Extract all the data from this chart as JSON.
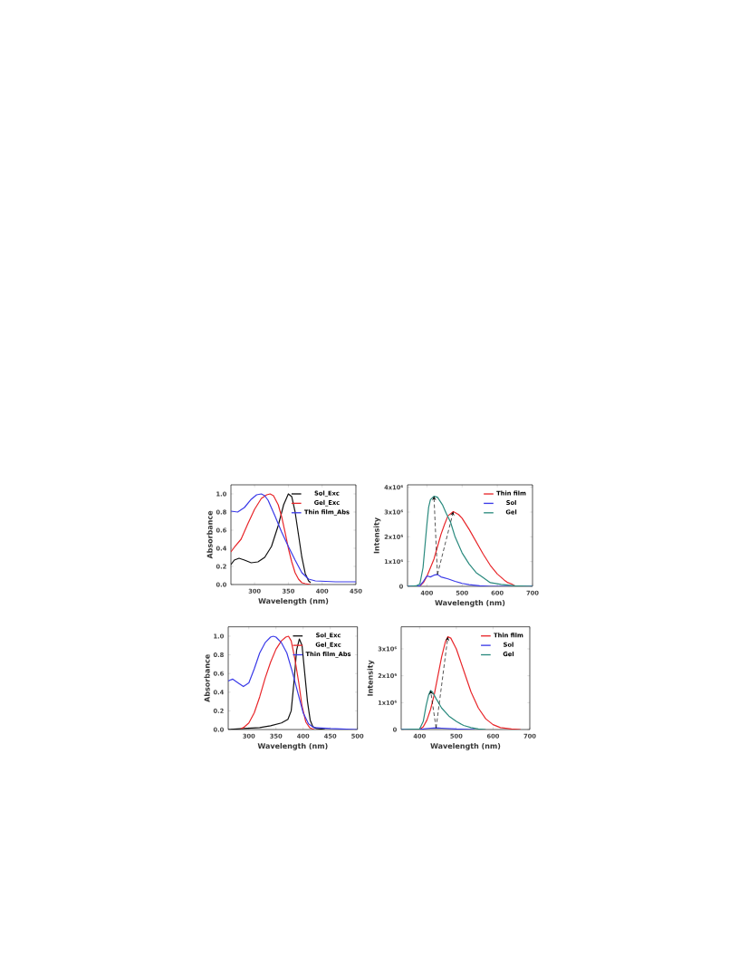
{
  "chart_data": [
    {
      "type": "line",
      "xlabel": "Wavelength (nm)",
      "ylabel": "Absorbance",
      "xlim": [
        265,
        450
      ],
      "xticks": [
        300,
        350,
        400,
        450
      ],
      "ylim": [
        0,
        1.1
      ],
      "yticks": [
        {
          "value": 0,
          "label": "0.0"
        },
        {
          "value": 0.2,
          "label": "0.2"
        },
        {
          "value": 0.4,
          "label": "0.4"
        },
        {
          "value": 0.6,
          "label": "0.6"
        },
        {
          "value": 0.8,
          "label": "0.8"
        },
        {
          "value": 1.0,
          "label": "1.0"
        }
      ],
      "legend": "top right",
      "series": [
        {
          "name": "Sol_Exc",
          "color": "#111111",
          "x": [
            265,
            270,
            277,
            285,
            295,
            305,
            315,
            325,
            335,
            343,
            350,
            355,
            360,
            365,
            370,
            375,
            380,
            383
          ],
          "values": [
            0.22,
            0.27,
            0.29,
            0.27,
            0.24,
            0.25,
            0.3,
            0.42,
            0.65,
            0.88,
            1.0,
            0.97,
            0.8,
            0.55,
            0.3,
            0.12,
            0.04,
            0.02
          ]
        },
        {
          "name": "Gel_Exc",
          "color": "#e8262a",
          "x": [
            265,
            270,
            280,
            290,
            300,
            310,
            318,
            323,
            328,
            335,
            340,
            345,
            350,
            355,
            360,
            365,
            370,
            375,
            383
          ],
          "values": [
            0.36,
            0.41,
            0.5,
            0.67,
            0.83,
            0.95,
            0.99,
            1.0,
            0.98,
            0.88,
            0.75,
            0.58,
            0.4,
            0.25,
            0.13,
            0.06,
            0.02,
            0.01,
            0.0
          ]
        },
        {
          "name": "Thin film_Abs",
          "color": "#3a3ae8",
          "x": [
            265,
            275,
            285,
            295,
            303,
            310,
            315,
            320,
            330,
            340,
            350,
            360,
            370,
            380,
            390,
            420,
            450
          ],
          "values": [
            0.81,
            0.8,
            0.85,
            0.94,
            0.99,
            1.0,
            0.98,
            0.93,
            0.76,
            0.58,
            0.42,
            0.27,
            0.13,
            0.06,
            0.04,
            0.03,
            0.03
          ]
        }
      ]
    },
    {
      "type": "line",
      "xlabel": "Wavelength (nm)",
      "ylabel": "Intensity",
      "xlim": [
        345,
        700
      ],
      "xticks": [
        400,
        500,
        600,
        700
      ],
      "ylim": [
        0,
        4100000
      ],
      "yticks": [
        {
          "value": 0,
          "label": "0"
        },
        {
          "value": 1000000,
          "label": "1x10⁶"
        },
        {
          "value": 2000000,
          "label": "2x10⁶"
        },
        {
          "value": 3000000,
          "label": "3x10⁶"
        },
        {
          "value": 4000000,
          "label": "4x10⁶"
        }
      ],
      "legend": "top right",
      "series": [
        {
          "name": "Thin film",
          "color": "#e8262a",
          "x": [
            380,
            390,
            400,
            410,
            420,
            430,
            440,
            450,
            460,
            475,
            490,
            500,
            520,
            540,
            560,
            580,
            600,
            620,
            630,
            640,
            650
          ],
          "values": [
            20000,
            150000,
            400000,
            750000,
            1100000,
            1600000,
            2100000,
            2500000,
            2850000,
            3020000,
            2900000,
            2750000,
            2300000,
            1800000,
            1300000,
            850000,
            500000,
            250000,
            150000,
            100000,
            20000
          ]
        },
        {
          "name": "Sol",
          "color": "#3a3ae8",
          "x": [
            345,
            380,
            390,
            400,
            410,
            420,
            430,
            440,
            460,
            480,
            500,
            520,
            550,
            580,
            700
          ],
          "values": [
            0,
            20000,
            200000,
            420000,
            380000,
            450000,
            480000,
            380000,
            300000,
            200000,
            120000,
            70000,
            20000,
            0,
            0
          ]
        },
        {
          "name": "Gel",
          "color": "#2a8a7e",
          "x": [
            345,
            370,
            380,
            389,
            395,
            400,
            405,
            410,
            420,
            430,
            444,
            455,
            467,
            480,
            500,
            520,
            540,
            555,
            580,
            611,
            650,
            700
          ],
          "values": [
            0,
            20000,
            100000,
            750000,
            1700000,
            2500000,
            3200000,
            3500000,
            3640000,
            3600000,
            3300000,
            2950000,
            2600000,
            2000000,
            1350000,
            900000,
            550000,
            400000,
            150000,
            80000,
            20000,
            0
          ]
        }
      ]
    },
    {
      "type": "line",
      "xlabel": "Wavelength (nm)",
      "ylabel": "Absorbance",
      "xlim": [
        262,
        500
      ],
      "xticks": [
        300,
        350,
        400,
        450,
        500
      ],
      "ylim": [
        0,
        1.1
      ],
      "yticks": [
        {
          "value": 0,
          "label": "0.0"
        },
        {
          "value": 0.2,
          "label": "0.2"
        },
        {
          "value": 0.4,
          "label": "0.4"
        },
        {
          "value": 0.6,
          "label": "0.6"
        },
        {
          "value": 0.8,
          "label": "0.8"
        },
        {
          "value": 1.0,
          "label": "1.0"
        }
      ],
      "legend": "top right",
      "series": [
        {
          "name": "Sol_Exc",
          "color": "#111111",
          "x": [
            262,
            290,
            320,
            340,
            360,
            372,
            378,
            383,
            388,
            393,
            398,
            403,
            408,
            413,
            418,
            425,
            440
          ],
          "values": [
            0,
            0.01,
            0.02,
            0.04,
            0.07,
            0.11,
            0.2,
            0.5,
            0.85,
            0.97,
            0.9,
            0.6,
            0.3,
            0.1,
            0.03,
            0.01,
            0
          ]
        },
        {
          "name": "Gel_Exc",
          "color": "#e8262a",
          "x": [
            285,
            290,
            300,
            310,
            320,
            330,
            340,
            350,
            360,
            368,
            373,
            378,
            385,
            392,
            398,
            405,
            412,
            420
          ],
          "values": [
            0.01,
            0.02,
            0.07,
            0.18,
            0.35,
            0.55,
            0.72,
            0.86,
            0.95,
            0.99,
            1.0,
            0.95,
            0.75,
            0.5,
            0.25,
            0.08,
            0.02,
            0
          ]
        },
        {
          "name": "Thin film_Abs",
          "color": "#3a3ae8",
          "x": [
            262,
            270,
            280,
            290,
            300,
            310,
            320,
            330,
            340,
            345,
            350,
            360,
            370,
            380,
            390,
            400,
            410,
            420,
            450,
            500
          ],
          "values": [
            0.52,
            0.54,
            0.5,
            0.46,
            0.5,
            0.65,
            0.82,
            0.93,
            0.99,
            1.0,
            0.99,
            0.93,
            0.82,
            0.62,
            0.4,
            0.18,
            0.06,
            0.02,
            0.01,
            0
          ]
        }
      ]
    },
    {
      "type": "line",
      "xlabel": "Wavelength (nm)",
      "ylabel": "Intensity",
      "xlim": [
        350,
        700
      ],
      "xticks": [
        400,
        500,
        600,
        700
      ],
      "ylim": [
        0,
        3820000
      ],
      "yticks": [
        {
          "value": 0,
          "label": "0"
        },
        {
          "value": 1000000,
          "label": "1x10⁶"
        },
        {
          "value": 2000000,
          "label": "2x10⁶"
        },
        {
          "value": 3000000,
          "label": "3x10⁶"
        }
      ],
      "legend": "top right",
      "series": [
        {
          "name": "Thin film",
          "color": "#e8262a",
          "x": [
            400,
            410,
            420,
            430,
            440,
            450,
            460,
            470,
            477,
            485,
            500,
            520,
            540,
            560,
            580,
            600,
            620,
            650,
            675
          ],
          "values": [
            0,
            100000,
            350000,
            750000,
            1300000,
            2000000,
            2700000,
            3250000,
            3450000,
            3400000,
            3000000,
            2200000,
            1400000,
            800000,
            400000,
            180000,
            70000,
            20000,
            0
          ]
        },
        {
          "name": "Sol",
          "color": "#3a3ae8",
          "x": [
            350,
            410,
            430,
            445,
            460,
            500,
            550
          ],
          "values": [
            0,
            20000,
            50000,
            60000,
            50000,
            20000,
            0
          ]
        },
        {
          "name": "Gel",
          "color": "#2a8a7e",
          "x": [
            350,
            400,
            410,
            418,
            425,
            430,
            435,
            445,
            460,
            480,
            500,
            520,
            540,
            560,
            580
          ],
          "values": [
            0,
            20000,
            300000,
            900000,
            1300000,
            1450000,
            1400000,
            1150000,
            800000,
            500000,
            300000,
            150000,
            70000,
            20000,
            0
          ]
        }
      ]
    }
  ]
}
